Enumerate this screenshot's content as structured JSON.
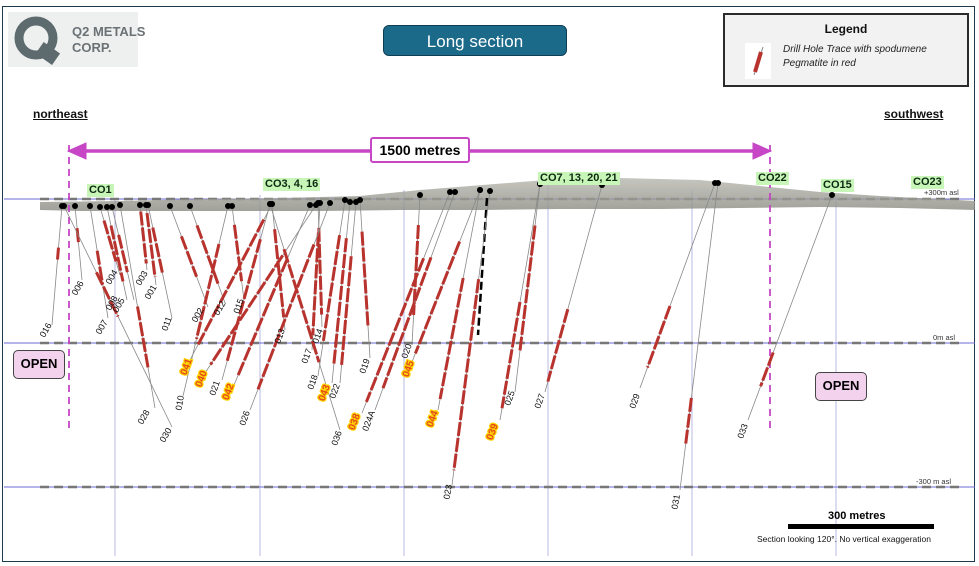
{
  "logo": {
    "name": "Q2 METALS\nCORP."
  },
  "title": "Long section",
  "legend": {
    "title": "Legend",
    "description": "Drill Hole Trace with spodumene Pegmatite in red",
    "icon": "drill-trace-swatch-icon",
    "colors": {
      "pegmatite": "#b8332e",
      "trace": "#888888"
    }
  },
  "directions": {
    "left": "northeast",
    "right": "southwest"
  },
  "distance": {
    "label": "1500  metres",
    "color": "#c646c6"
  },
  "open_labels": [
    "OPEN",
    "OPEN"
  ],
  "claims": [
    "CO1",
    "CO3, 4, 16",
    "CO7, 13, 20, 21",
    "CO22",
    "CO15",
    "CO23"
  ],
  "elevations": [
    "+300m asl",
    "0m asl",
    "-300 m asl"
  ],
  "scale": {
    "label": "300 metres"
  },
  "caption": "Section looking 120°.  No vertical exaggeration",
  "holes": [
    {
      "id": "016",
      "highlight": false
    },
    {
      "id": "006",
      "highlight": false
    },
    {
      "id": "007",
      "highlight": false
    },
    {
      "id": "004",
      "highlight": false
    },
    {
      "id": "005",
      "highlight": false
    },
    {
      "id": "008",
      "highlight": false
    },
    {
      "id": "003",
      "highlight": false
    },
    {
      "id": "001",
      "highlight": false
    },
    {
      "id": "011",
      "highlight": false
    },
    {
      "id": "002",
      "highlight": false
    },
    {
      "id": "012",
      "highlight": false
    },
    {
      "id": "015",
      "highlight": false
    },
    {
      "id": "013",
      "highlight": false
    },
    {
      "id": "014",
      "highlight": false
    },
    {
      "id": "017",
      "highlight": false
    },
    {
      "id": "018",
      "highlight": false
    },
    {
      "id": "019",
      "highlight": false
    },
    {
      "id": "020",
      "highlight": false
    },
    {
      "id": "041",
      "highlight": true
    },
    {
      "id": "040",
      "highlight": true
    },
    {
      "id": "010",
      "highlight": false
    },
    {
      "id": "021",
      "highlight": false
    },
    {
      "id": "042",
      "highlight": true
    },
    {
      "id": "028",
      "highlight": false
    },
    {
      "id": "030",
      "highlight": false
    },
    {
      "id": "026",
      "highlight": false
    },
    {
      "id": "043",
      "highlight": true
    },
    {
      "id": "022",
      "highlight": false
    },
    {
      "id": "036",
      "highlight": false
    },
    {
      "id": "038",
      "highlight": true
    },
    {
      "id": "024A",
      "highlight": false
    },
    {
      "id": "045",
      "highlight": true
    },
    {
      "id": "044",
      "highlight": true
    },
    {
      "id": "023",
      "highlight": false
    },
    {
      "id": "039",
      "highlight": true
    },
    {
      "id": "025",
      "highlight": false
    },
    {
      "id": "027",
      "highlight": false
    },
    {
      "id": "029",
      "highlight": false
    },
    {
      "id": "031",
      "highlight": false
    },
    {
      "id": "033",
      "highlight": false
    }
  ]
}
